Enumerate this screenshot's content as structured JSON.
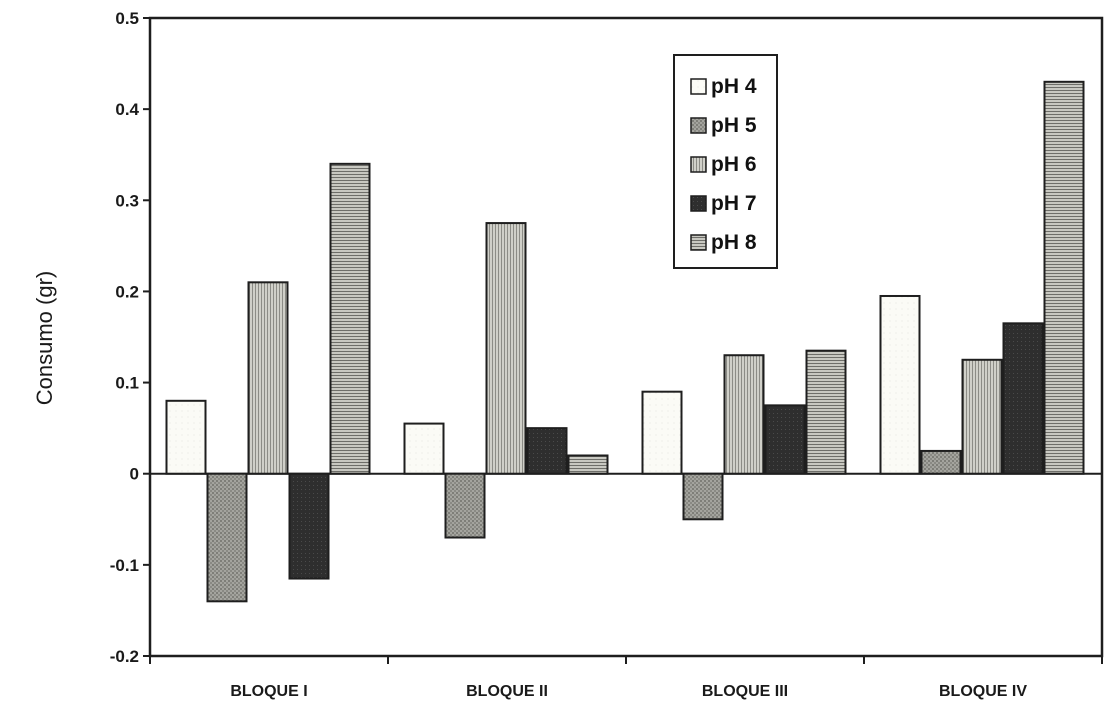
{
  "chart_data": {
    "type": "bar",
    "title": "",
    "xlabel": "",
    "ylabel": "Consumo (gr)",
    "ylim": [
      -0.2,
      0.5
    ],
    "yticks": [
      "0.5",
      "0.4",
      "0.3",
      "0.2",
      "0.1",
      "0",
      "-0.1",
      "-0.2"
    ],
    "categories": [
      "BLOQUE I",
      "BLOQUE II",
      "BLOQUE III",
      "BLOQUE IV"
    ],
    "series": [
      {
        "name": "pH 4",
        "values": [
          0.08,
          0.055,
          0.09,
          0.195
        ],
        "color": "#fbfbf6"
      },
      {
        "name": "pH 5",
        "values": [
          -0.14,
          -0.07,
          -0.05,
          0.025
        ],
        "color": "#9a9a94"
      },
      {
        "name": "pH 6",
        "values": [
          0.21,
          0.275,
          0.13,
          0.125
        ],
        "color": "#bdbdb6"
      },
      {
        "name": "pH 7",
        "values": [
          -0.115,
          0.05,
          0.075,
          0.165
        ],
        "color": "#2e2e2e"
      },
      {
        "name": "pH 8",
        "values": [
          0.34,
          0.02,
          0.135,
          0.43
        ],
        "color": "#8f8f89"
      }
    ],
    "grid": false,
    "legend_position": "top-right"
  }
}
